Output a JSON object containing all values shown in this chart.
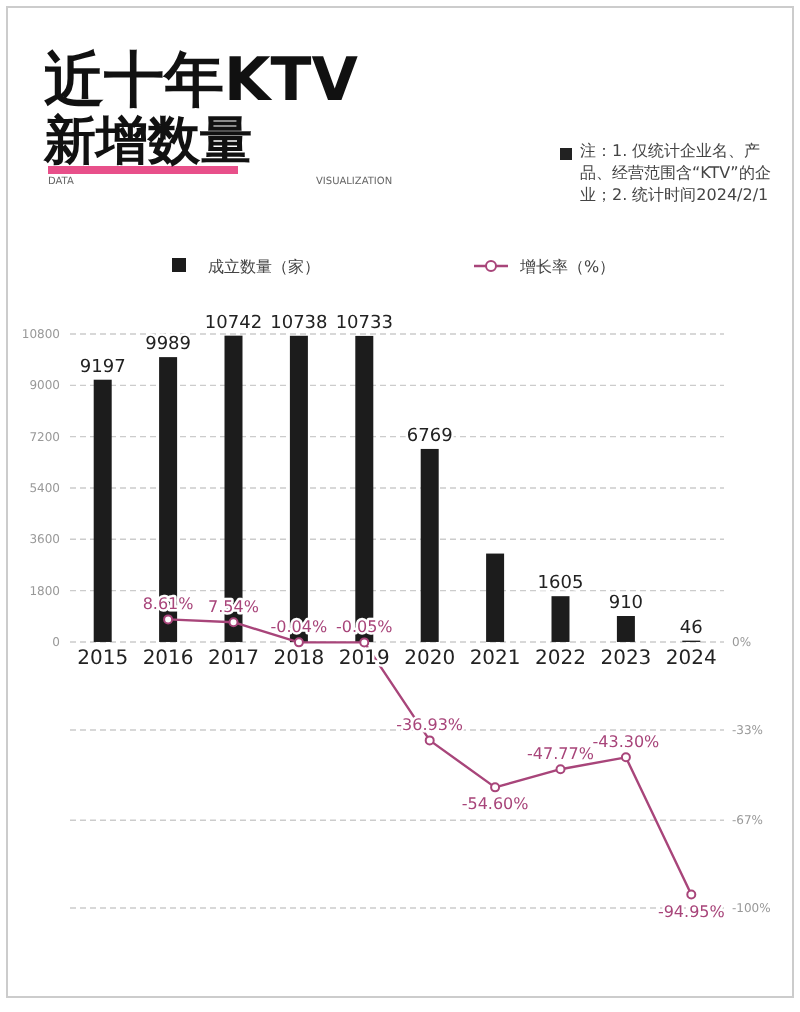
{
  "chart_data": {
    "type": "bar",
    "title": "近十年KTV新增数量",
    "annotations": [
      "DATA",
      "VISUALIZATION",
      "注：1. 仅统计企业名、产品、经营范围含“KTV”的企业；2. 统计时间2024/2/1"
    ],
    "categories": [
      "2015",
      "2016",
      "2017",
      "2018",
      "2019",
      "2020",
      "2021",
      "2022",
      "2023",
      "2024"
    ],
    "series": [
      {
        "name": "成立数量（家）",
        "color": "#1c1c1c",
        "values": [
          9197,
          9989,
          10742,
          10738,
          10733,
          6769,
          3100,
          1605,
          910,
          46
        ],
        "value_labels": [
          "9197",
          "9989",
          "10742",
          "10738",
          "10733",
          "6769",
          null,
          "1605",
          "910",
          "46"
        ]
      },
      {
        "name": "增长率（%）",
        "type": "line",
        "axis": "y2",
        "color": "#a8457a",
        "marker": "circle",
        "values": [
          null,
          8.61,
          7.54,
          -0.04,
          -0.05,
          -36.93,
          -54.6,
          -47.77,
          -43.3,
          -94.95
        ],
        "value_labels": [
          null,
          "8.61%",
          "7.54%",
          "-0.04%",
          "-0.05%",
          "-36.93%",
          "-54.60%",
          "-47.77%",
          "-43.30%",
          "-94.95%"
        ]
      }
    ],
    "ylim": [
      -9330,
      10800
    ],
    "yticks": [
      0,
      1800,
      3600,
      5400,
      7200,
      9000,
      10800
    ],
    "y2lim": [
      -100,
      116
    ],
    "y2ticks": [
      {
        "value": 0,
        "label": "0%"
      },
      {
        "value": -33,
        "label": "-33%"
      },
      {
        "value": -67,
        "label": "-67%"
      },
      {
        "value": -100,
        "label": "-100%"
      }
    ],
    "grid": true,
    "legend": "top"
  }
}
